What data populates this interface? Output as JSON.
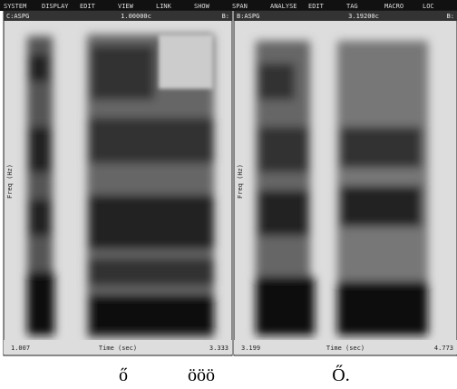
{
  "menu": [
    "SYSTEM",
    "DISPLAY",
    "EDIT",
    "VIEW",
    "LINK",
    "SHOW",
    "SPAN",
    "ANALYSE",
    "EDIT",
    "TAG",
    "MACRO",
    "LOC"
  ],
  "panels": [
    {
      "file": "C:ASPG",
      "time": "1.00000c",
      "flag": "B:",
      "ylabel": "Freq (Hz)",
      "x_start": "1.007",
      "x_label": "Time (sec)",
      "x_end": "3.333"
    },
    {
      "file": "B:ASPG",
      "time": "3.19200c",
      "flag": "B:",
      "ylabel": "Freq (Hz)",
      "x_start": "3.199",
      "x_label": "Time (sec)",
      "x_end": "4.773"
    }
  ],
  "captions": [
    "ő",
    "ööö",
    "Ő."
  ]
}
